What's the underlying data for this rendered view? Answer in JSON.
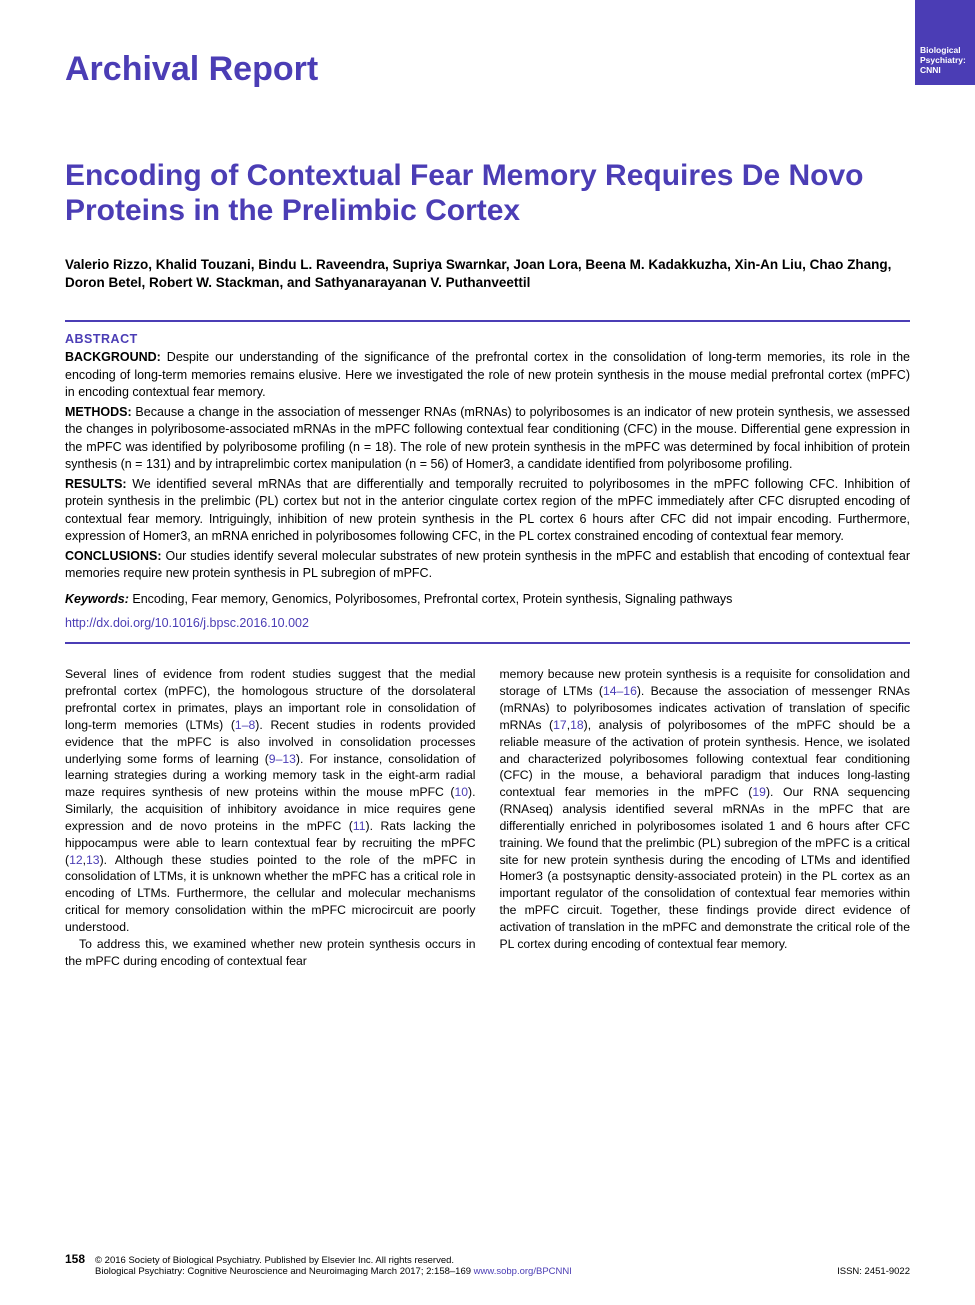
{
  "badge": {
    "line1": "Biological",
    "line2": "Psychiatry:",
    "line3": "CNNI"
  },
  "articleType": "Archival Report",
  "title": "Encoding of Contextual Fear Memory Requires De Novo Proteins in the Prelimbic Cortex",
  "authors": "Valerio Rizzo, Khalid Touzani, Bindu L. Raveendra, Supriya Swarnkar, Joan Lora, Beena M. Kadakkuzha, Xin-An Liu, Chao Zhang, Doron Betel, Robert W. Stackman, and Sathyanarayanan V. Puthanveettil",
  "abstract": {
    "heading": "ABSTRACT",
    "background": {
      "label": "BACKGROUND:",
      "text": " Despite our understanding of the significance of the prefrontal cortex in the consolidation of long-term memories, its role in the encoding of long-term memories remains elusive. Here we investigated the role of new protein synthesis in the mouse medial prefrontal cortex (mPFC) in encoding contextual fear memory."
    },
    "methods": {
      "label": "METHODS:",
      "text": " Because a change in the association of messenger RNAs (mRNAs) to polyribosomes is an indicator of new protein synthesis, we assessed the changes in polyribosome-associated mRNAs in the mPFC following contextual fear conditioning (CFC) in the mouse. Differential gene expression in the mPFC was identified by polyribosome profiling (n = 18). The role of new protein synthesis in the mPFC was determined by focal inhibition of protein synthesis (n = 131) and by intraprelimbic cortex manipulation (n = 56) of Homer3, a candidate identified from polyribosome profiling."
    },
    "results": {
      "label": "RESULTS:",
      "text": " We identified several mRNAs that are differentially and temporally recruited to polyribosomes in the mPFC following CFC. Inhibition of protein synthesis in the prelimbic (PL) cortex but not in the anterior cingulate cortex region of the mPFC immediately after CFC disrupted encoding of contextual fear memory. Intriguingly, inhibition of new protein synthesis in the PL cortex 6 hours after CFC did not impair encoding. Furthermore, expression of Homer3, an mRNA enriched in polyribosomes following CFC, in the PL cortex constrained encoding of contextual fear memory."
    },
    "conclusions": {
      "label": "CONCLUSIONS:",
      "text": " Our studies identify several molecular substrates of new protein synthesis in the mPFC and establish that encoding of contextual fear memories require new protein synthesis in PL subregion of mPFC."
    },
    "keywords": {
      "label": "Keywords:",
      "text": " Encoding, Fear memory, Genomics, Polyribosomes, Prefrontal cortex, Protein synthesis, Signaling pathways"
    },
    "doi": "http://dx.doi.org/10.1016/j.bpsc.2016.10.002"
  },
  "body": {
    "col1p1a": "Several lines of evidence from rodent studies suggest that the medial prefrontal cortex (mPFC), the homologous structure of the dorsolateral prefrontal cortex in primates, plays an important role in consolidation of long-term memories (LTMs) (",
    "ref1": "1–8",
    "col1p1b": "). Recent studies in rodents provided evidence that the mPFC is also involved in consolidation processes underlying some forms of learning (",
    "ref2": "9–13",
    "col1p1c": "). For instance, consolidation of learning strategies during a working memory task in the eight-arm radial maze requires synthesis of new proteins within the mouse mPFC (",
    "ref3": "10",
    "col1p1d": "). Similarly, the acquisition of inhibitory avoidance in mice requires gene expression and de novo proteins in the mPFC (",
    "ref4": "11",
    "col1p1e": "). Rats lacking the hippocampus were able to learn contextual fear by recruiting the mPFC (",
    "ref5": "12",
    "col1p1f": ",",
    "ref6": "13",
    "col1p1g": "). Although these studies pointed to the role of the mPFC in consolidation of LTMs, it is unknown whether the mPFC has a critical role in encoding of LTMs. Furthermore, the cellular and molecular mechanisms critical for memory consolidation within the mPFC microcircuit are poorly understood.",
    "col1p2": "To address this, we examined whether new protein synthesis occurs in the mPFC during encoding of contextual fear",
    "col2p1a": "memory because new protein synthesis is a requisite for consolidation and storage of LTMs (",
    "ref7": "14–16",
    "col2p1b": "). Because the association of messenger RNAs (mRNAs) to polyribosomes indicates activation of translation of specific mRNAs (",
    "ref8": "17",
    "col2p1c": ",",
    "ref9": "18",
    "col2p1d": "), analysis of polyribosomes of the mPFC should be a reliable measure of the activation of protein synthesis. Hence, we isolated and characterized polyribosomes following contextual fear conditioning (CFC) in the mouse, a behavioral paradigm that induces long-lasting contextual fear memories in the mPFC (",
    "ref10": "19",
    "col2p1e": "). Our RNA sequencing (RNAseq) analysis identified several mRNAs in the mPFC that are differentially enriched in polyribosomes isolated 1 and 6 hours after CFC training. We found that the prelimbic (PL) subregion of the mPFC is a critical site for new protein synthesis during the encoding of LTMs and identified Homer3 (a postsynaptic density-associated protein) in the PL cortex as an important regulator of the consolidation of contextual fear memories within the mPFC circuit. Together, these findings provide direct evidence of activation of translation in the mPFC and demonstrate the critical role of the PL cortex during encoding of contextual fear memory."
  },
  "footer": {
    "page": "158",
    "copyright": "© 2016 Society of Biological Psychiatry. Published by Elsevier Inc. All rights reserved.",
    "journalLine": "Biological Psychiatry: Cognitive Neuroscience and Neuroimaging March 2017; 2:158–169 ",
    "journalUrl": "www.sobp.org/BPCNNI",
    "issn": "ISSN: 2451-9022"
  }
}
